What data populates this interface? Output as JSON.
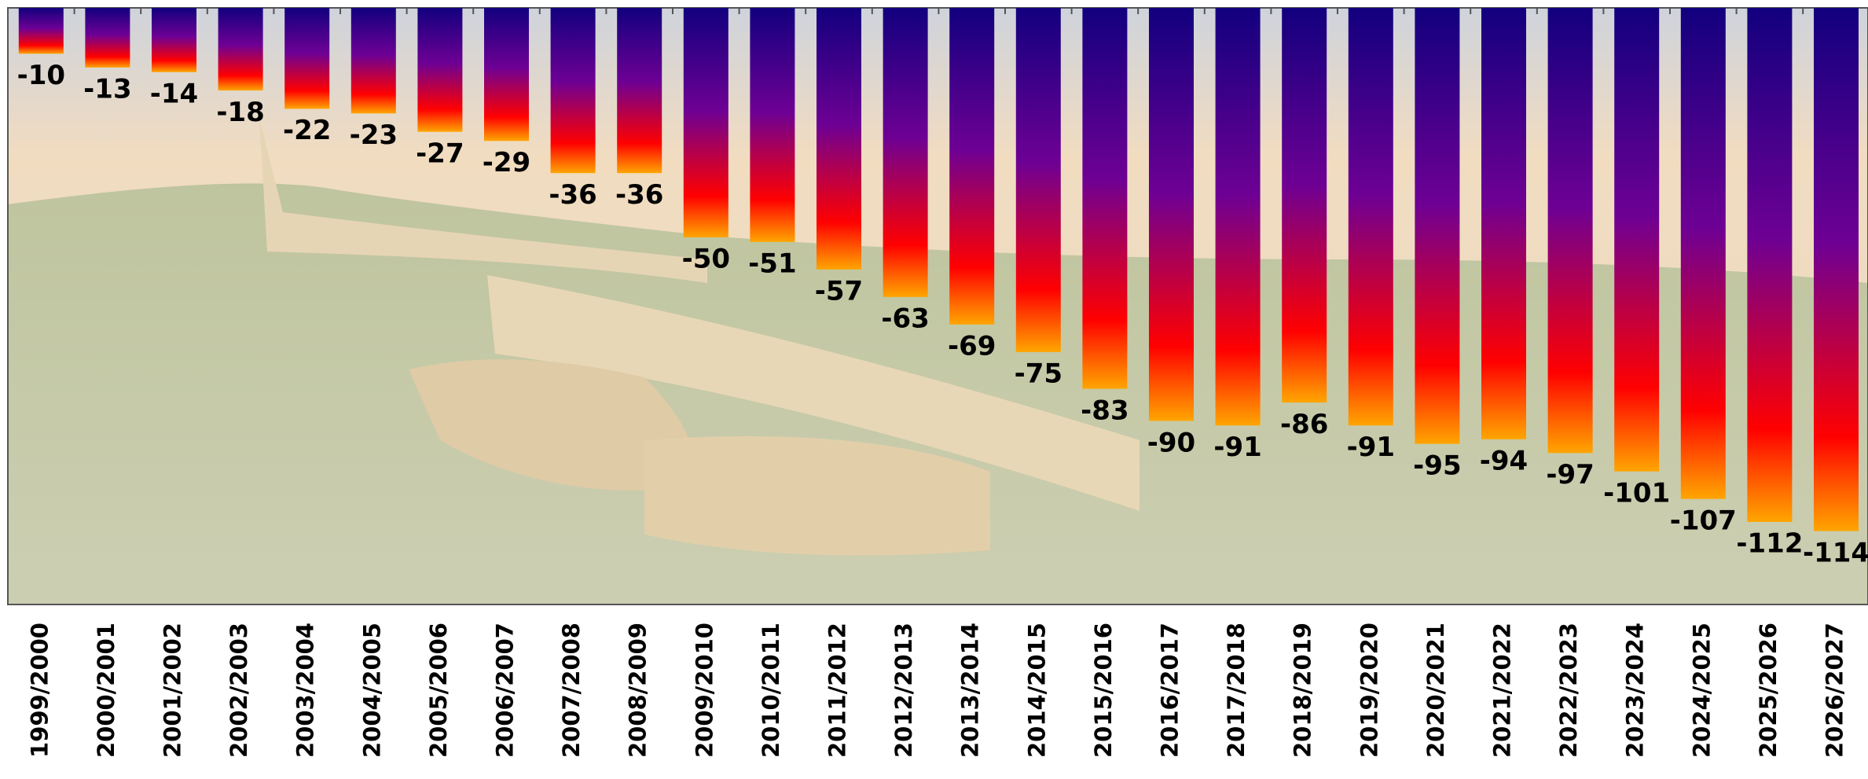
{
  "chart_data": {
    "type": "bar",
    "categories": [
      "1999/2000",
      "2000/2001",
      "2001/2002",
      "2002/2003",
      "2003/2004",
      "2004/2005",
      "2005/2006",
      "2006/2007",
      "2007/2008",
      "2008/2009",
      "2009/2010",
      "2010/2011",
      "2011/2012",
      "2012/2013",
      "2013/2014",
      "2014/2015",
      "2015/2016",
      "2016/2017",
      "2017/2018",
      "2018/2019",
      "2019/2020",
      "2020/2021",
      "2021/2022",
      "2022/2023",
      "2023/2024",
      "2024/2025",
      "2025/2026",
      "2026/2027"
    ],
    "values": [
      -10,
      -13,
      -14,
      -18,
      -22,
      -23,
      -27,
      -29,
      -36,
      -36,
      -50,
      -51,
      -57,
      -63,
      -69,
      -75,
      -83,
      -90,
      -91,
      -86,
      -91,
      -95,
      -94,
      -97,
      -101,
      -107,
      -112,
      -114
    ],
    "ylim": [
      0,
      -130
    ],
    "gradient": [
      "#12007e",
      "#6e0094",
      "#ff0000",
      "#ffa500"
    ]
  }
}
